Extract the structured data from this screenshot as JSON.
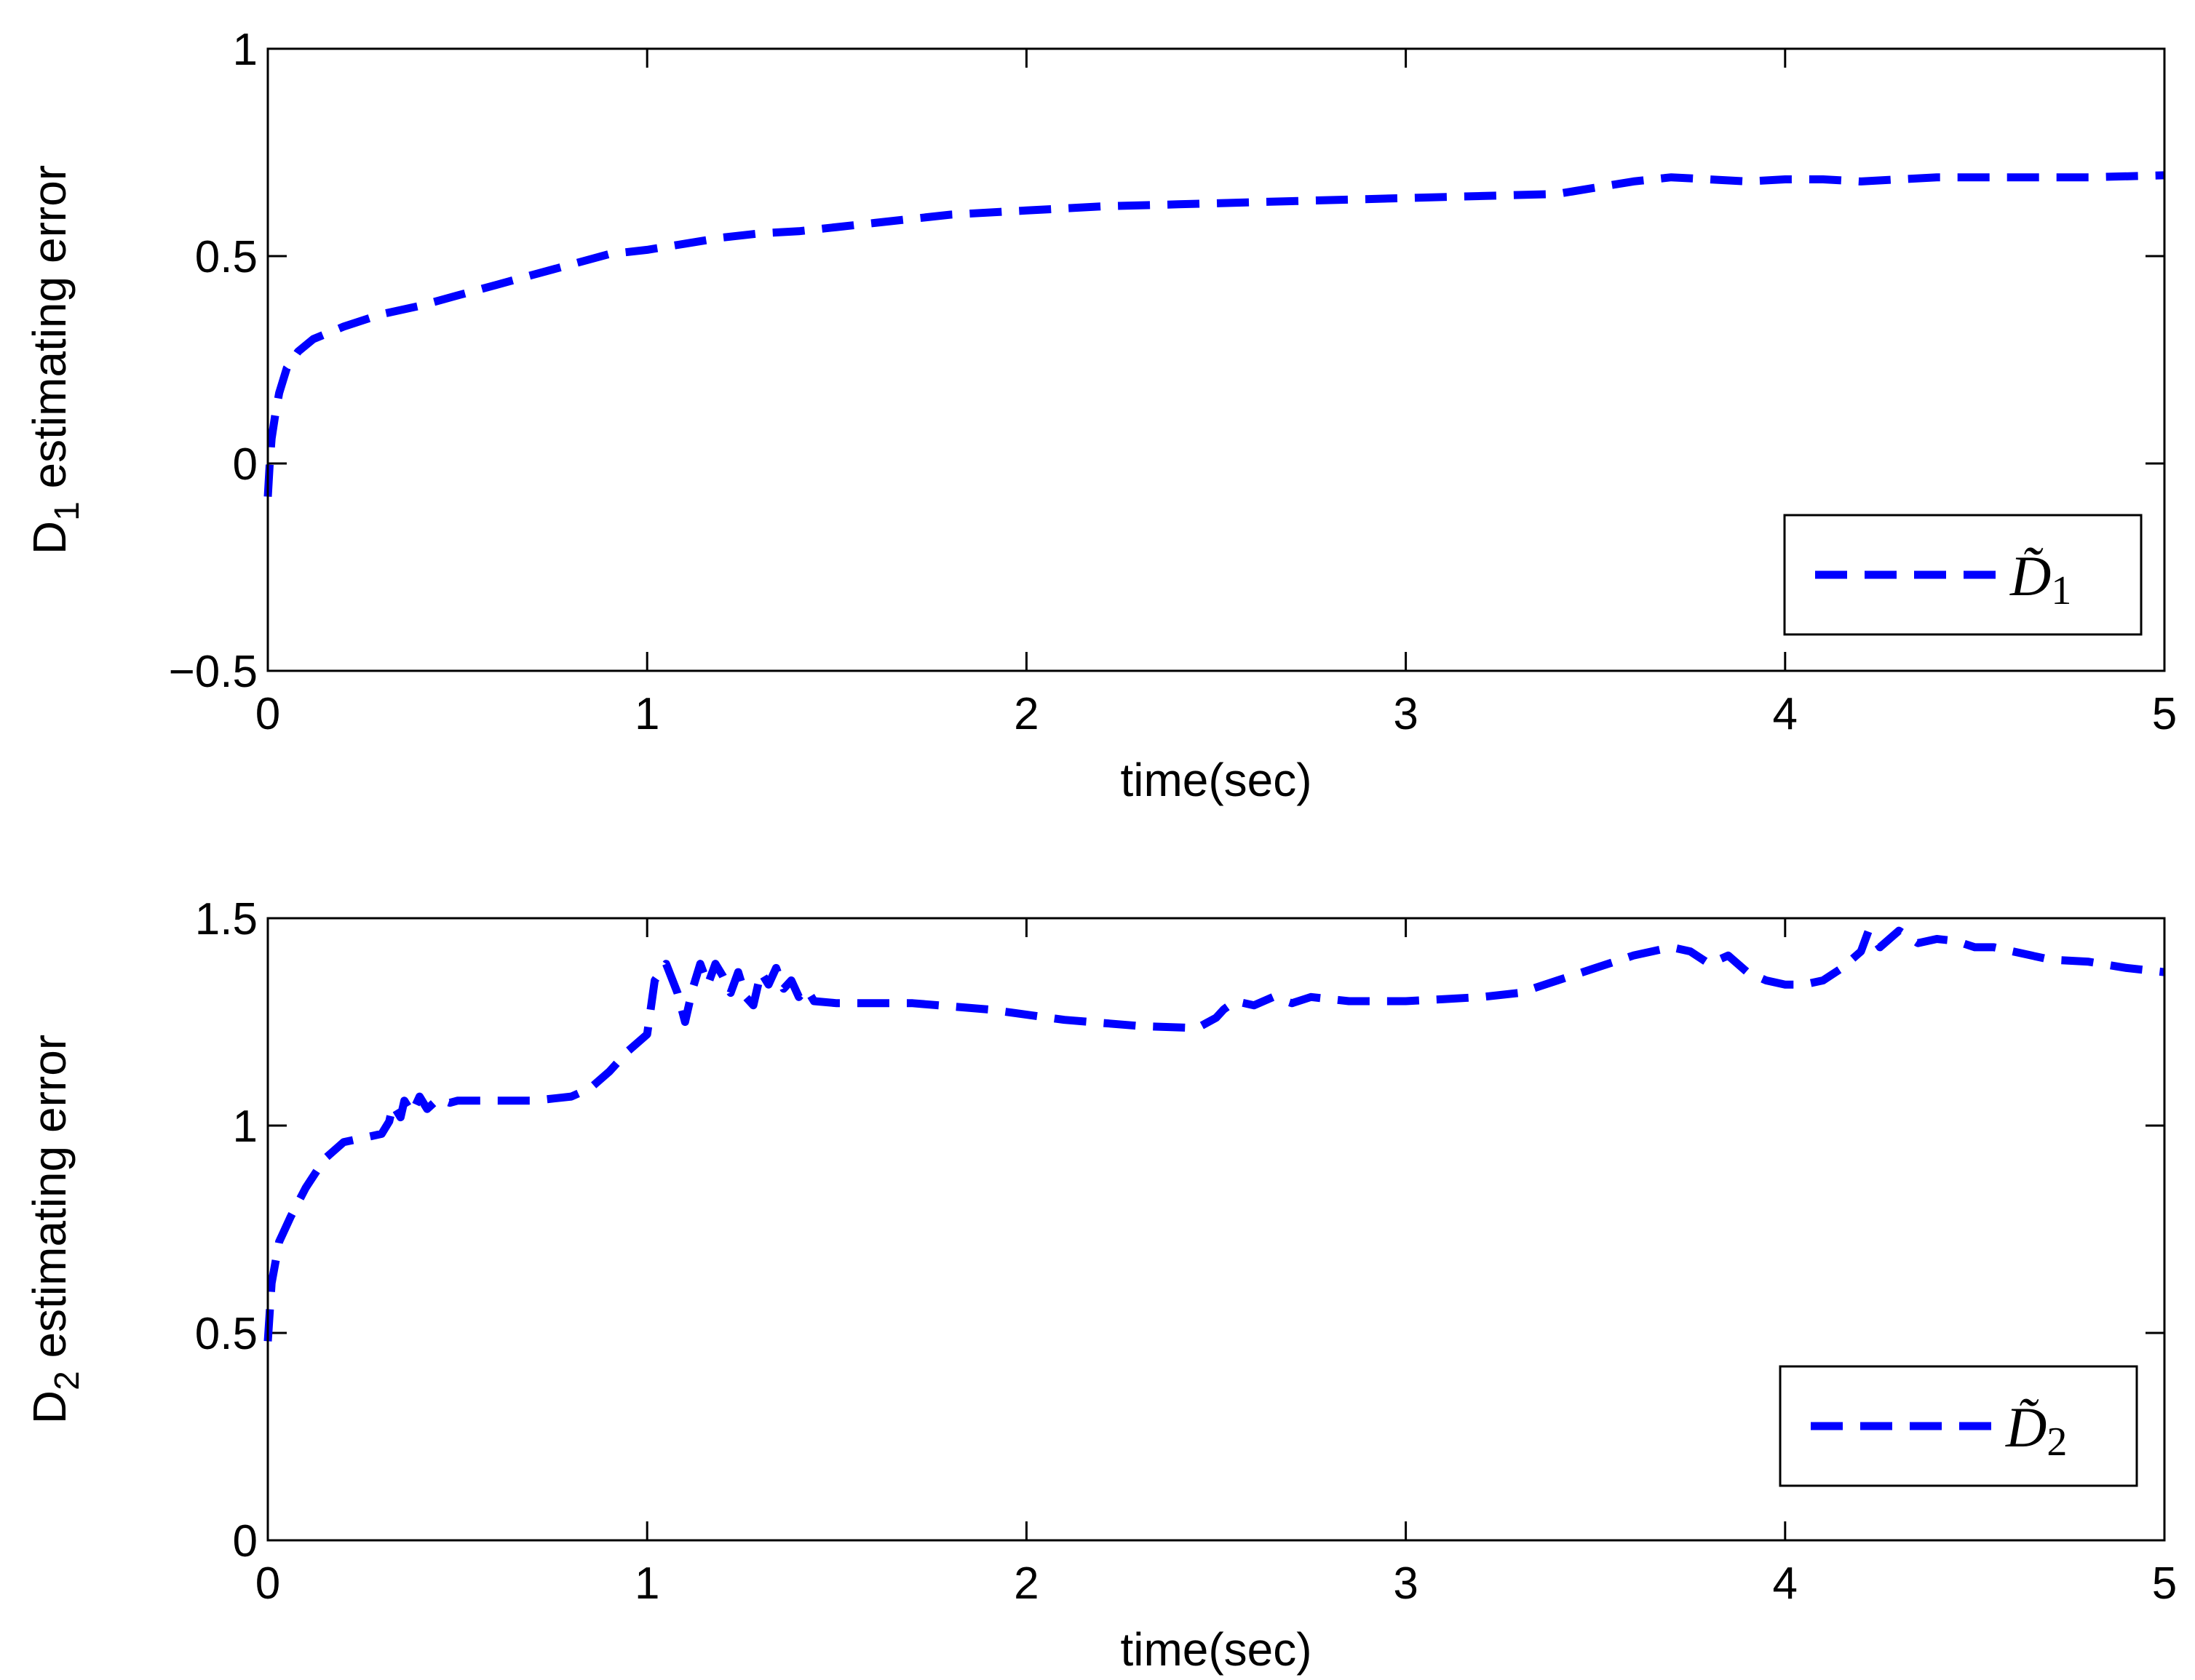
{
  "chart_data": [
    {
      "type": "line",
      "xlabel": "time(sec)",
      "ylabel": {
        "main": "D",
        "sub": "1",
        "rest": " estimating error"
      },
      "xlim": [
        0,
        5
      ],
      "ylim": [
        -0.5,
        1
      ],
      "xticks": [
        0,
        1,
        2,
        3,
        4,
        5
      ],
      "xtick_labels": [
        "0",
        "1",
        "2",
        "3",
        "4",
        "5"
      ],
      "yticks": [
        -0.5,
        0,
        0.5,
        1
      ],
      "ytick_labels": [
        "−0.5",
        "0",
        "0.5",
        "1"
      ],
      "grid": false,
      "legend_position": "bottom-right",
      "series": [
        {
          "name": "D̃1",
          "legend": {
            "main": "D̃",
            "sub": "1"
          },
          "color": "#0000ff",
          "linestyle": "dashed",
          "x": [
            0,
            0.005,
            0.01,
            0.02,
            0.03,
            0.05,
            0.08,
            0.12,
            0.2,
            0.3,
            0.4,
            0.5,
            0.6,
            0.7,
            0.8,
            0.9,
            1.0,
            1.1,
            1.2,
            1.3,
            1.4,
            1.5,
            1.6,
            1.8,
            2.0,
            2.2,
            2.4,
            2.6,
            2.8,
            3.0,
            3.2,
            3.4,
            3.5,
            3.6,
            3.7,
            3.8,
            3.9,
            4.0,
            4.1,
            4.2,
            4.3,
            4.4,
            4.6,
            4.8,
            5.0
          ],
          "y": [
            -0.08,
            0.0,
            0.06,
            0.12,
            0.17,
            0.23,
            0.27,
            0.3,
            0.33,
            0.36,
            0.38,
            0.405,
            0.43,
            0.455,
            0.48,
            0.505,
            0.515,
            0.53,
            0.545,
            0.555,
            0.56,
            0.57,
            0.58,
            0.6,
            0.61,
            0.62,
            0.625,
            0.63,
            0.635,
            0.64,
            0.645,
            0.65,
            0.665,
            0.68,
            0.69,
            0.685,
            0.68,
            0.685,
            0.685,
            0.68,
            0.685,
            0.69,
            0.69,
            0.69,
            0.695
          ]
        }
      ]
    },
    {
      "type": "line",
      "xlabel": "time(sec)",
      "ylabel": {
        "main": "D",
        "sub": "2",
        "rest": " estimating error"
      },
      "xlim": [
        0,
        5
      ],
      "ylim": [
        0,
        1.5
      ],
      "xticks": [
        0,
        1,
        2,
        3,
        4,
        5
      ],
      "xtick_labels": [
        "0",
        "1",
        "2",
        "3",
        "4",
        "5"
      ],
      "yticks": [
        0,
        0.5,
        1,
        1.5
      ],
      "ytick_labels": [
        "0",
        "0.5",
        "1",
        "1.5"
      ],
      "grid": false,
      "legend_position": "bottom-right",
      "series": [
        {
          "name": "D̃2",
          "legend": {
            "main": "D̃",
            "sub": "2"
          },
          "color": "#0000ff",
          "linestyle": "dashed",
          "x": [
            0,
            0.01,
            0.03,
            0.06,
            0.1,
            0.15,
            0.2,
            0.25,
            0.3,
            0.32,
            0.33,
            0.35,
            0.36,
            0.38,
            0.4,
            0.42,
            0.45,
            0.48,
            0.5,
            0.6,
            0.7,
            0.8,
            0.85,
            0.9,
            0.95,
            1.0,
            1.02,
            1.05,
            1.08,
            1.1,
            1.12,
            1.14,
            1.16,
            1.18,
            1.2,
            1.22,
            1.24,
            1.26,
            1.28,
            1.3,
            1.32,
            1.34,
            1.36,
            1.38,
            1.4,
            1.42,
            1.44,
            1.5,
            1.7,
            1.9,
            2.1,
            2.3,
            2.45,
            2.5,
            2.52,
            2.55,
            2.6,
            2.65,
            2.7,
            2.75,
            2.8,
            2.85,
            2.9,
            3.0,
            3.1,
            3.2,
            3.3,
            3.4,
            3.5,
            3.6,
            3.7,
            3.75,
            3.8,
            3.85,
            3.9,
            3.95,
            4.0,
            4.05,
            4.1,
            4.15,
            4.2,
            4.22,
            4.25,
            4.3,
            4.35,
            4.4,
            4.45,
            4.5,
            4.55,
            4.6,
            4.65,
            4.7,
            4.8,
            4.9,
            5.0
          ],
          "y": [
            0.48,
            0.62,
            0.72,
            0.78,
            0.85,
            0.92,
            0.96,
            0.97,
            0.98,
            1.01,
            1.05,
            1.02,
            1.06,
            1.03,
            1.07,
            1.04,
            1.065,
            1.055,
            1.06,
            1.06,
            1.06,
            1.07,
            1.09,
            1.13,
            1.18,
            1.22,
            1.35,
            1.39,
            1.32,
            1.25,
            1.33,
            1.39,
            1.34,
            1.39,
            1.36,
            1.32,
            1.37,
            1.31,
            1.29,
            1.37,
            1.34,
            1.38,
            1.33,
            1.35,
            1.31,
            1.33,
            1.3,
            1.295,
            1.295,
            1.28,
            1.255,
            1.24,
            1.235,
            1.26,
            1.28,
            1.3,
            1.29,
            1.31,
            1.295,
            1.31,
            1.305,
            1.3,
            1.3,
            1.3,
            1.305,
            1.31,
            1.32,
            1.35,
            1.38,
            1.41,
            1.43,
            1.42,
            1.39,
            1.41,
            1.37,
            1.35,
            1.34,
            1.34,
            1.35,
            1.38,
            1.42,
            1.47,
            1.43,
            1.47,
            1.44,
            1.45,
            1.445,
            1.43,
            1.43,
            1.42,
            1.41,
            1.4,
            1.395,
            1.38,
            1.37
          ]
        }
      ]
    }
  ]
}
